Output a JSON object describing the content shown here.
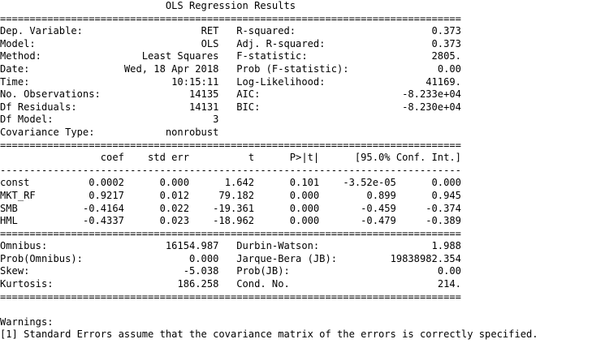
{
  "title": "OLS Regression Results",
  "summary_left": [
    {
      "label": "Dep. Variable:",
      "value": "RET"
    },
    {
      "label": "Model:",
      "value": "OLS"
    },
    {
      "label": "Method:",
      "value": "Least Squares"
    },
    {
      "label": "Date:",
      "value": "Wed, 18 Apr 2018"
    },
    {
      "label": "Time:",
      "value": "10:15:11"
    },
    {
      "label": "No. Observations:",
      "value": "14135"
    },
    {
      "label": "Df Residuals:",
      "value": "14131"
    },
    {
      "label": "Df Model:",
      "value": "3"
    },
    {
      "label": "Covariance Type:",
      "value": "nonrobust"
    }
  ],
  "summary_right": [
    {
      "label": "R-squared:",
      "value": "0.373"
    },
    {
      "label": "Adj. R-squared:",
      "value": "0.373"
    },
    {
      "label": "F-statistic:",
      "value": "2805."
    },
    {
      "label": "Prob (F-statistic):",
      "value": "0.00"
    },
    {
      "label": "Log-Likelihood:",
      "value": "41169."
    },
    {
      "label": "AIC:",
      "value": "-8.233e+04"
    },
    {
      "label": "BIC:",
      "value": "-8.230e+04"
    }
  ],
  "coef_headers": [
    "coef",
    "std err",
    "t",
    "P>|t|",
    "[95.0% Conf. Int.]"
  ],
  "coef_rows": [
    {
      "name": "const",
      "coef": "0.0002",
      "std_err": "0.000",
      "t": "1.642",
      "p": "0.101",
      "ci_low": "-3.52e-05",
      "ci_high": "0.000"
    },
    {
      "name": "MKT_RF",
      "coef": "0.9217",
      "std_err": "0.012",
      "t": "79.182",
      "p": "0.000",
      "ci_low": "0.899",
      "ci_high": "0.945"
    },
    {
      "name": "SMB",
      "coef": "-0.4164",
      "std_err": "0.022",
      "t": "-19.361",
      "p": "0.000",
      "ci_low": "-0.459",
      "ci_high": "-0.374"
    },
    {
      "name": "HML",
      "coef": "-0.4337",
      "std_err": "0.023",
      "t": "-18.962",
      "p": "0.000",
      "ci_low": "-0.479",
      "ci_high": "-0.389"
    }
  ],
  "diag_left": [
    {
      "label": "Omnibus:",
      "value": "16154.987"
    },
    {
      "label": "Prob(Omnibus):",
      "value": "0.000"
    },
    {
      "label": "Skew:",
      "value": "-5.038"
    },
    {
      "label": "Kurtosis:",
      "value": "186.258"
    }
  ],
  "diag_right": [
    {
      "label": "Durbin-Watson:",
      "value": "1.988"
    },
    {
      "label": "Jarque-Bera (JB):",
      "value": "19838982.354"
    },
    {
      "label": "Prob(JB):",
      "value": "0.00"
    },
    {
      "label": "Cond. No.",
      "value": "214."
    }
  ],
  "warnings_title": "Warnings:",
  "warnings": [
    "[1] Standard Errors assume that the covariance matrix of the errors is correctly specified."
  ]
}
